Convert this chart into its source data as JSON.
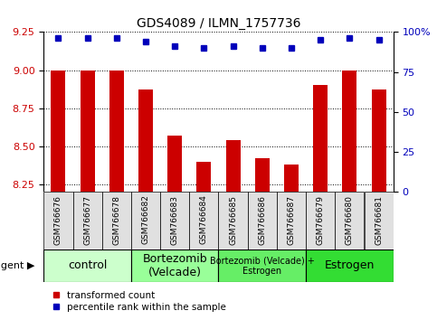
{
  "title": "GDS4089 / ILMN_1757736",
  "samples": [
    "GSM766676",
    "GSM766677",
    "GSM766678",
    "GSM766682",
    "GSM766683",
    "GSM766684",
    "GSM766685",
    "GSM766686",
    "GSM766687",
    "GSM766679",
    "GSM766680",
    "GSM766681"
  ],
  "bar_values": [
    9.0,
    9.0,
    9.0,
    8.87,
    8.57,
    8.4,
    8.54,
    8.42,
    8.38,
    8.9,
    9.0,
    8.87
  ],
  "percentile_values": [
    96,
    96,
    96,
    94,
    91,
    90,
    91,
    90,
    90,
    95,
    96,
    95
  ],
  "bar_color": "#cc0000",
  "percentile_color": "#0000bb",
  "ylim_left": [
    8.2,
    9.25
  ],
  "ylim_right": [
    0,
    100
  ],
  "yticks_left": [
    8.25,
    8.5,
    8.75,
    9.0,
    9.25
  ],
  "yticks_right": [
    0,
    25,
    50,
    75,
    100
  ],
  "groups": [
    {
      "label": "control",
      "start": 0,
      "end": 3,
      "color": "#ccffcc",
      "fontsize": 9
    },
    {
      "label": "Bortezomib\n(Velcade)",
      "start": 3,
      "end": 6,
      "color": "#99ff99",
      "fontsize": 9
    },
    {
      "label": "Bortezomib (Velcade) +\nEstrogen",
      "start": 6,
      "end": 9,
      "color": "#66ee66",
      "fontsize": 7
    },
    {
      "label": "Estrogen",
      "start": 9,
      "end": 12,
      "color": "#33dd33",
      "fontsize": 9
    }
  ],
  "agent_label": "agent",
  "legend_bar_label": "transformed count",
  "legend_pct_label": "percentile rank within the sample",
  "bg_color": "#ffffff",
  "sample_box_color": "#e0e0e0"
}
